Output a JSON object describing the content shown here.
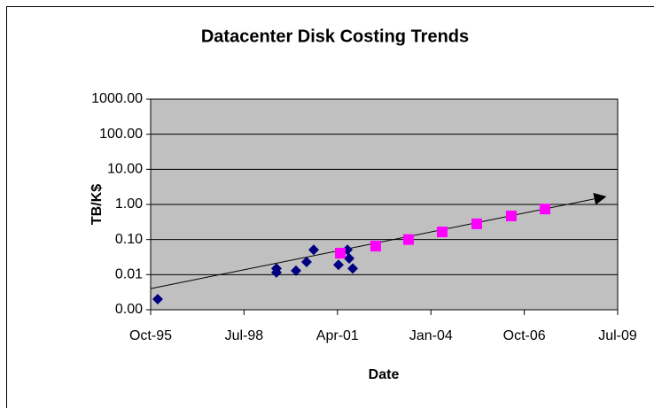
{
  "chart_data": {
    "type": "scatter",
    "title": "Datacenter Disk Costing Trends",
    "x_label": "Date",
    "y_label": "TB/K$",
    "xlim": [
      34973,
      39995
    ],
    "xticks": [
      {
        "value": 34973,
        "label": "Oct-95"
      },
      {
        "value": 35977,
        "label": "Jul-98"
      },
      {
        "value": 36982,
        "label": "Apr-01"
      },
      {
        "value": 37987,
        "label": "Jan-04"
      },
      {
        "value": 38991,
        "label": "Oct-06"
      },
      {
        "value": 39995,
        "label": "Jul-09"
      }
    ],
    "ylim": [
      0.001,
      1000
    ],
    "y_log": true,
    "grid": true,
    "yticks": [
      {
        "value": 0.001,
        "label": "0.00"
      },
      {
        "value": 0.01,
        "label": "0.01"
      },
      {
        "value": 0.1,
        "label": "0.10"
      },
      {
        "value": 1,
        "label": "1.00"
      },
      {
        "value": 10,
        "label": "10.00"
      },
      {
        "value": 100,
        "label": "100.00"
      },
      {
        "value": 1000,
        "label": "1000.00"
      }
    ],
    "series": [
      {
        "color": "#000080",
        "marker": "diamond",
        "x": [
          35049,
          36326,
          36326,
          36536,
          36650,
          36726,
          36993,
          37089,
          37108,
          37146
        ],
        "values": [
          0.002,
          0.015,
          0.0115,
          0.013,
          0.023,
          0.051,
          0.019,
          0.051,
          0.029,
          0.015
        ]
      },
      {
        "color": "#ff00ff",
        "marker": "square",
        "x": [
          37012,
          37393,
          37746,
          38108,
          38480,
          38851,
          39214
        ],
        "values": [
          0.041,
          0.065,
          0.1,
          0.165,
          0.28,
          0.47,
          0.74
        ]
      }
    ],
    "trendline": {
      "color": "#000000",
      "x": [
        34973,
        39862
      ],
      "values": [
        0.004,
        1.66
      ]
    }
  }
}
